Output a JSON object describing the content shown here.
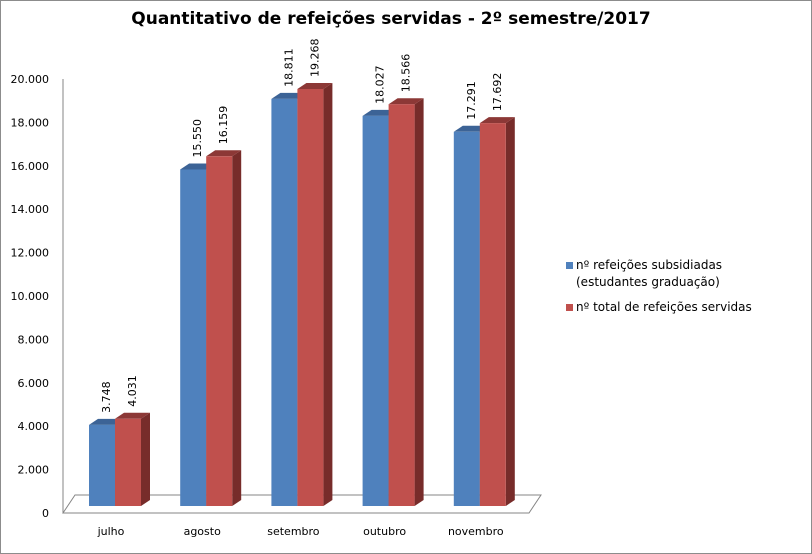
{
  "chart_data": {
    "type": "bar",
    "title": "Quantitativo  de refeições servidas - 2º semestre/2017",
    "categories": [
      "julho",
      "agosto",
      "setembro",
      "outubro",
      "novembro"
    ],
    "series": [
      {
        "name": "nº refeições subsidiadas (estudantes graduação)",
        "values": [
          3748,
          15550,
          18811,
          18027,
          17291
        ],
        "labels": [
          "3.748",
          "15.550",
          "18.811",
          "18.027",
          "17.291"
        ],
        "color": "#4f81bd"
      },
      {
        "name": "nº total de refeições servidas",
        "values": [
          4031,
          16159,
          19268,
          18566,
          17692
        ],
        "labels": [
          "4.031",
          "16.159",
          "19.268",
          "18.566",
          "17.692"
        ],
        "color": "#c0504d"
      }
    ],
    "ylim": [
      0,
      20000
    ],
    "yticks": [
      "0",
      "2.000",
      "4.000",
      "6.000",
      "8.000",
      "10.000",
      "12.000",
      "14.000",
      "16.000",
      "18.000",
      "20.000"
    ],
    "grid": false,
    "style": "3d-clustered-column",
    "legend": "right"
  }
}
